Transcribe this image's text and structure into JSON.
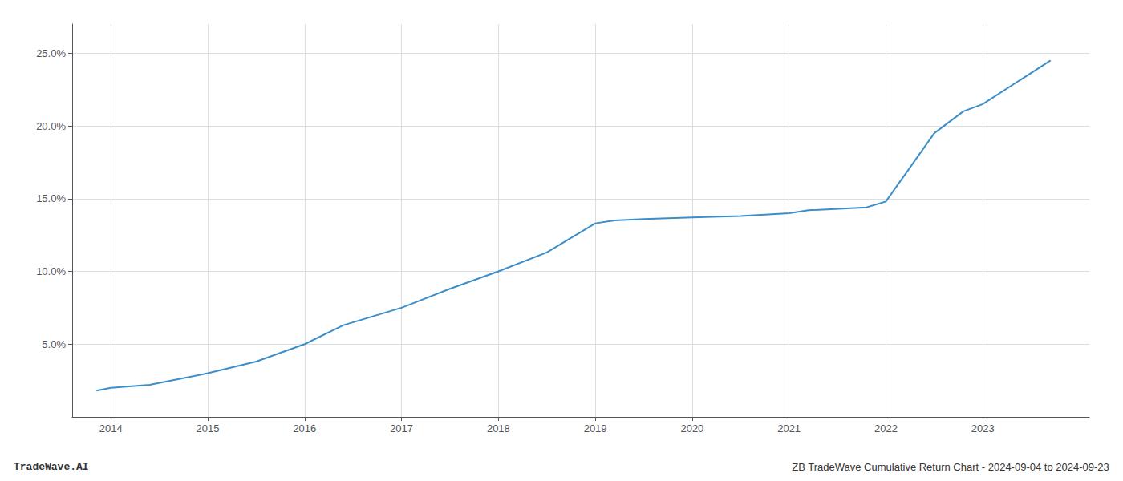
{
  "chart_data": {
    "type": "line",
    "title": "ZB TradeWave Cumulative Return Chart - 2024-09-04 to 2024-09-23",
    "annotations": [
      "TradeWave.AI"
    ],
    "x": [
      2013.85,
      2014.0,
      2014.4,
      2015.0,
      2015.5,
      2016.0,
      2016.4,
      2017.0,
      2017.5,
      2018.0,
      2018.5,
      2019.0,
      2019.2,
      2019.5,
      2020.0,
      2020.5,
      2021.0,
      2021.2,
      2021.8,
      2022.0,
      2022.5,
      2022.8,
      2023.0,
      2023.7
    ],
    "values": [
      0.018,
      0.02,
      0.022,
      0.03,
      0.038,
      0.05,
      0.063,
      0.075,
      0.088,
      0.1,
      0.113,
      0.133,
      0.135,
      0.136,
      0.137,
      0.138,
      0.14,
      0.142,
      0.144,
      0.148,
      0.195,
      0.21,
      0.215,
      0.245
    ],
    "color": "#3b8ec9",
    "xlim": [
      2013.6,
      2024.1
    ],
    "xticks": [
      2014,
      2015,
      2016,
      2017,
      2018,
      2019,
      2020,
      2021,
      2022,
      2023
    ],
    "ylim": [
      0.0,
      0.27
    ],
    "yticks": [
      {
        "value": 0.05,
        "label": "5.0%"
      },
      {
        "value": 0.1,
        "label": "10.0%"
      },
      {
        "value": 0.15,
        "label": "15.0%"
      },
      {
        "value": 0.2,
        "label": "20.0%"
      },
      {
        "value": 0.25,
        "label": "25.0%"
      }
    ],
    "grid": true
  }
}
